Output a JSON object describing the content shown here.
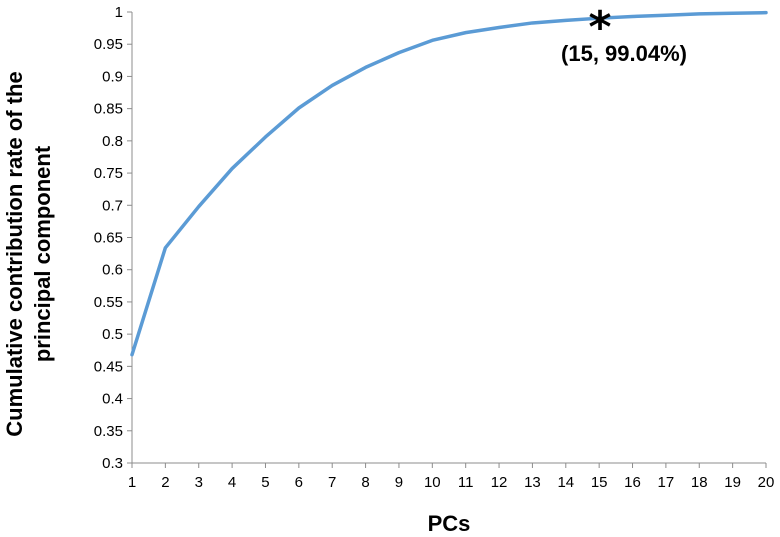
{
  "chart_data": {
    "type": "line",
    "xlabel": "PCs",
    "ylabel_lines": [
      "Cumulative contribution rate of the",
      "principal component"
    ],
    "x": [
      1,
      2,
      3,
      4,
      5,
      6,
      7,
      8,
      9,
      10,
      11,
      12,
      13,
      14,
      15,
      16,
      17,
      18,
      19,
      20
    ],
    "series": [
      {
        "values": [
          0.468,
          0.634,
          0.698,
          0.757,
          0.806,
          0.851,
          0.886,
          0.914,
          0.937,
          0.956,
          0.968,
          0.976,
          0.983,
          0.987,
          0.9904,
          0.993,
          0.995,
          0.997,
          0.998,
          0.999
        ],
        "color": "#5b9bd5"
      }
    ],
    "xlim": [
      1,
      20
    ],
    "ylim": [
      0.3,
      1
    ],
    "x_ticks": [
      "1",
      "2",
      "3",
      "4",
      "5",
      "6",
      "7",
      "8",
      "9",
      "10",
      "11",
      "12",
      "13",
      "14",
      "15",
      "16",
      "17",
      "18",
      "19",
      "20"
    ],
    "y_ticks": [
      "0.3",
      "0.35",
      "0.4",
      "0.45",
      "0.5",
      "0.55",
      "0.6",
      "0.65",
      "0.7",
      "0.75",
      "0.8",
      "0.85",
      "0.9",
      "0.95",
      "1"
    ],
    "annotation": {
      "marker": "*",
      "x": 15,
      "y": 0.9904,
      "label": "(15, 99.04%)"
    },
    "grid": false,
    "legend": "none"
  }
}
